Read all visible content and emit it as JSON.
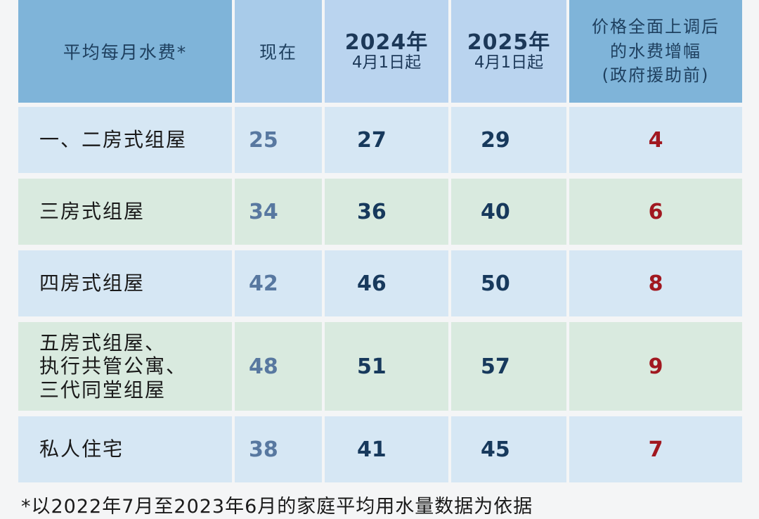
{
  "header": {
    "category": "平均每月水费*",
    "now": "现在",
    "year1": "2024年",
    "year1_sub": "4月1日起",
    "year2": "2025年",
    "year2_sub": "4月1日起",
    "increase_line1": "价格全面上调后",
    "increase_line2": "的水费增幅",
    "increase_line3": "(政府援助前)"
  },
  "rows": [
    {
      "label": "一、二房式组屋",
      "now": "25",
      "y2024": "27",
      "y2025": "29",
      "increase": "4"
    },
    {
      "label": "三房式组屋",
      "now": "34",
      "y2024": "36",
      "y2025": "40",
      "increase": "6"
    },
    {
      "label": "四房式组屋",
      "now": "42",
      "y2024": "46",
      "y2025": "50",
      "increase": "8"
    },
    {
      "label_line1": "五房式组屋、",
      "label_line2": "执行共管公寓、",
      "label_line3": "三代同堂组屋",
      "now": "48",
      "y2024": "51",
      "y2025": "57",
      "increase": "9"
    },
    {
      "label": "私人住宅",
      "now": "38",
      "y2024": "41",
      "y2025": "45",
      "increase": "7"
    }
  ],
  "footnote": "*以2022年7月至2023年6月的家庭平均用水量数据为依据",
  "colors": {
    "header_dark": "#7fb4d9",
    "header_light": "#bad4ef",
    "row_blue": "#d6e7f4",
    "row_green": "#d9eadf",
    "increase_red": "#a11820",
    "number_navy": "#17395c"
  }
}
